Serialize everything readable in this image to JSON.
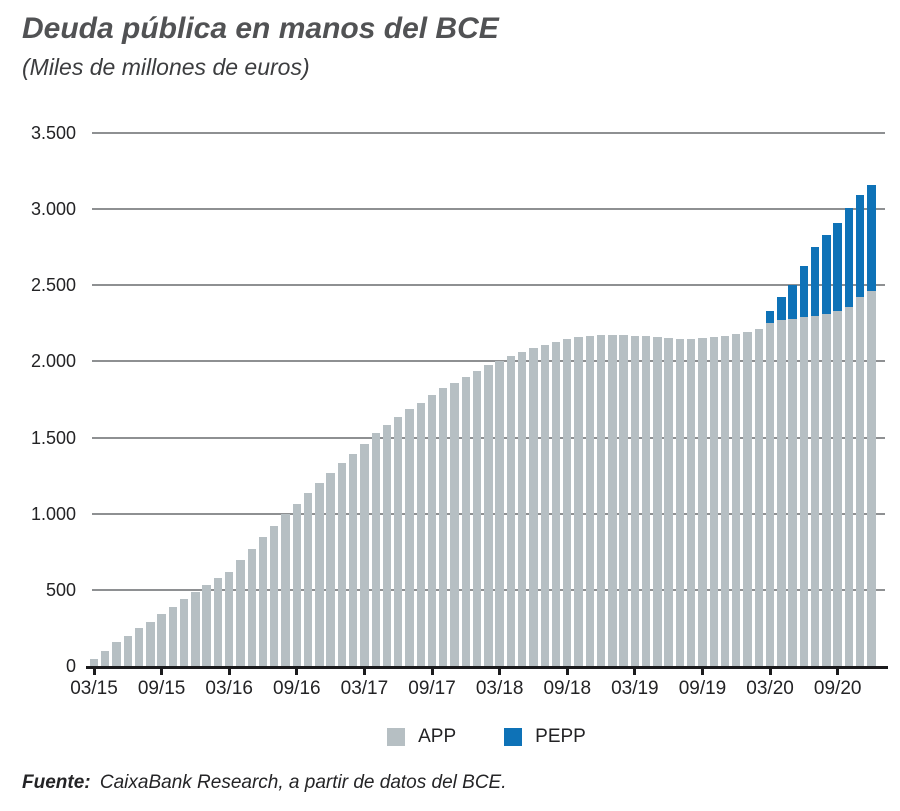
{
  "title": "Deuda pública en manos del BCE",
  "subtitle": "(Miles de millones de euros)",
  "source": {
    "label": "Fuente:",
    "text": " CaixaBank Research, a partir de datos del BCE."
  },
  "legend": {
    "items": [
      {
        "name": "APP",
        "color": "#b6bfc3"
      },
      {
        "name": "PEPP",
        "color": "#0e72b7"
      }
    ]
  },
  "colors": {
    "app_bar": "#b6bfc3",
    "pepp_bar": "#0e72b7",
    "gridline": "#8e9092",
    "axis": "#1b1b1d",
    "title_text": "#515254"
  },
  "y_axis": {
    "ticks": [
      {
        "value": 0,
        "label": "0"
      },
      {
        "value": 500,
        "label": "500"
      },
      {
        "value": 1000,
        "label": "1.000"
      },
      {
        "value": 1500,
        "label": "1.500"
      },
      {
        "value": 2000,
        "label": "2.000"
      },
      {
        "value": 2500,
        "label": "2.500"
      },
      {
        "value": 3000,
        "label": "3.000"
      },
      {
        "value": 3500,
        "label": "3.500"
      }
    ]
  },
  "x_axis": {
    "tick_labels": [
      "03/15",
      "09/15",
      "03/16",
      "09/16",
      "03/17",
      "09/17",
      "03/18",
      "09/18",
      "03/19",
      "09/19",
      "03/20",
      "09/20"
    ],
    "label_every_n_bars": 6
  },
  "chart_data": {
    "type": "bar",
    "stacked": true,
    "title": "Deuda pública en manos del BCE",
    "subtitle": "(Miles de millones de euros)",
    "ylabel": "Miles de millones de euros",
    "ylim": [
      0,
      3500
    ],
    "grid": true,
    "legend_position": "bottom",
    "x": [
      "03/15",
      "04/15",
      "05/15",
      "06/15",
      "07/15",
      "08/15",
      "09/15",
      "10/15",
      "11/15",
      "12/15",
      "01/16",
      "02/16",
      "03/16",
      "04/16",
      "05/16",
      "06/16",
      "07/16",
      "08/16",
      "09/16",
      "10/16",
      "11/16",
      "12/16",
      "01/17",
      "02/17",
      "03/17",
      "04/17",
      "05/17",
      "06/17",
      "07/17",
      "08/17",
      "09/17",
      "10/17",
      "11/17",
      "12/17",
      "01/18",
      "02/18",
      "03/18",
      "04/18",
      "05/18",
      "06/18",
      "07/18",
      "08/18",
      "09/18",
      "10/18",
      "11/18",
      "12/18",
      "01/19",
      "02/19",
      "03/19",
      "04/19",
      "05/19",
      "06/19",
      "07/19",
      "08/19",
      "09/19",
      "10/19",
      "11/19",
      "12/19",
      "01/20",
      "02/20",
      "03/20",
      "04/20",
      "05/20",
      "06/20",
      "07/20",
      "08/20",
      "09/20",
      "10/20",
      "11/20",
      "12/20"
    ],
    "series": [
      {
        "name": "APP",
        "color": "#b6bfc3",
        "values": [
          45,
          100,
          155,
          197,
          248,
          290,
          340,
          390,
          438,
          485,
          530,
          575,
          620,
          695,
          770,
          845,
          920,
          995,
          1065,
          1135,
          1200,
          1265,
          1330,
          1395,
          1460,
          1530,
          1585,
          1635,
          1685,
          1725,
          1780,
          1825,
          1860,
          1900,
          1940,
          1975,
          2005,
          2035,
          2060,
          2085,
          2110,
          2130,
          2150,
          2160,
          2170,
          2175,
          2175,
          2175,
          2170,
          2165,
          2160,
          2155,
          2150,
          2150,
          2155,
          2160,
          2170,
          2180,
          2195,
          2215,
          2250,
          2270,
          2280,
          2290,
          2300,
          2310,
          2330,
          2360,
          2425,
          2460
        ]
      },
      {
        "name": "PEPP",
        "color": "#0e72b7",
        "values": [
          0,
          0,
          0,
          0,
          0,
          0,
          0,
          0,
          0,
          0,
          0,
          0,
          0,
          0,
          0,
          0,
          0,
          0,
          0,
          0,
          0,
          0,
          0,
          0,
          0,
          0,
          0,
          0,
          0,
          0,
          0,
          0,
          0,
          0,
          0,
          0,
          0,
          0,
          0,
          0,
          0,
          0,
          0,
          0,
          0,
          0,
          0,
          0,
          0,
          0,
          0,
          0,
          0,
          0,
          0,
          0,
          0,
          0,
          0,
          0,
          80,
          150,
          225,
          335,
          450,
          520,
          580,
          650,
          665,
          700
        ]
      }
    ]
  }
}
